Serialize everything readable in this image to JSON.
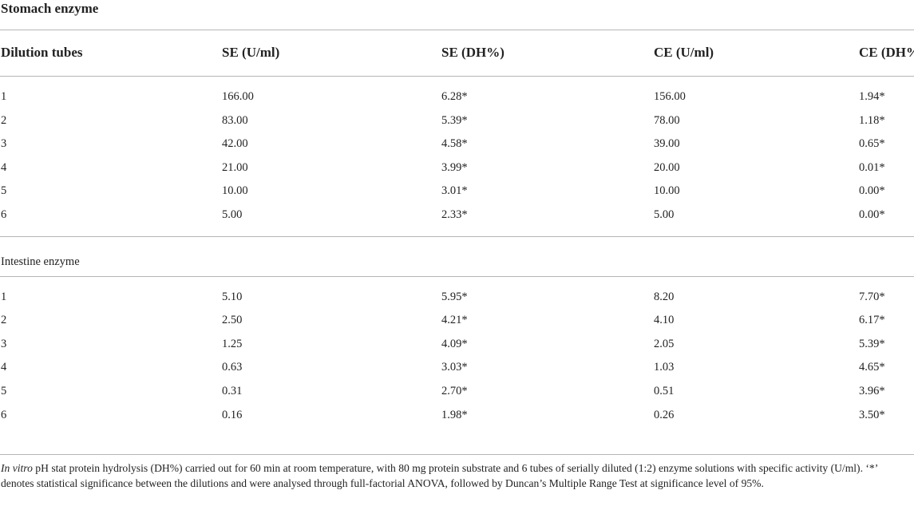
{
  "title": "Stomach enzyme",
  "table": {
    "header": [
      "Dilution tubes",
      "SE (U/ml)",
      "SE (DH%)",
      "CE (U/ml)",
      "CE (DH%)"
    ],
    "sections": [
      {
        "label": null,
        "rows": [
          [
            "1",
            "166.00",
            "6.28*",
            "156.00",
            "1.94*"
          ],
          [
            "2",
            "83.00",
            "5.39*",
            "78.00",
            "1.18*"
          ],
          [
            "3",
            "42.00",
            "4.58*",
            "39.00",
            "0.65*"
          ],
          [
            "4",
            "21.00",
            "3.99*",
            "20.00",
            "0.01*"
          ],
          [
            "5",
            "10.00",
            "3.01*",
            "10.00",
            "0.00*"
          ],
          [
            "6",
            "5.00",
            "2.33*",
            "5.00",
            "0.00*"
          ]
        ]
      },
      {
        "label": "Intestine enzyme",
        "rows": [
          [
            "1",
            "5.10",
            "5.95*",
            "8.20",
            "7.70*"
          ],
          [
            "2",
            "2.50",
            "4.21*",
            "4.10",
            "6.17*"
          ],
          [
            "3",
            "1.25",
            "4.09*",
            "2.05",
            "5.39*"
          ],
          [
            "4",
            "0.63",
            "3.03*",
            "1.03",
            "4.65*"
          ],
          [
            "5",
            "0.31",
            "2.70*",
            "0.51",
            "3.96*"
          ],
          [
            "6",
            "0.16",
            "1.98*",
            "0.26",
            "3.50*"
          ]
        ]
      }
    ]
  },
  "footnote": {
    "italic": "In vitro",
    "text": " pH stat protein hydrolysis (DH%) carried out for 60 min at room temperature, with 80 mg protein substrate and 6 tubes of serially diluted (1:2) enzyme solutions with specific activity (U/ml). ‘*’ denotes statistical significance between the dilutions and were analysed through full-factorial ANOVA, followed by Duncan’s Multiple Range Test at significance level of 95%."
  }
}
